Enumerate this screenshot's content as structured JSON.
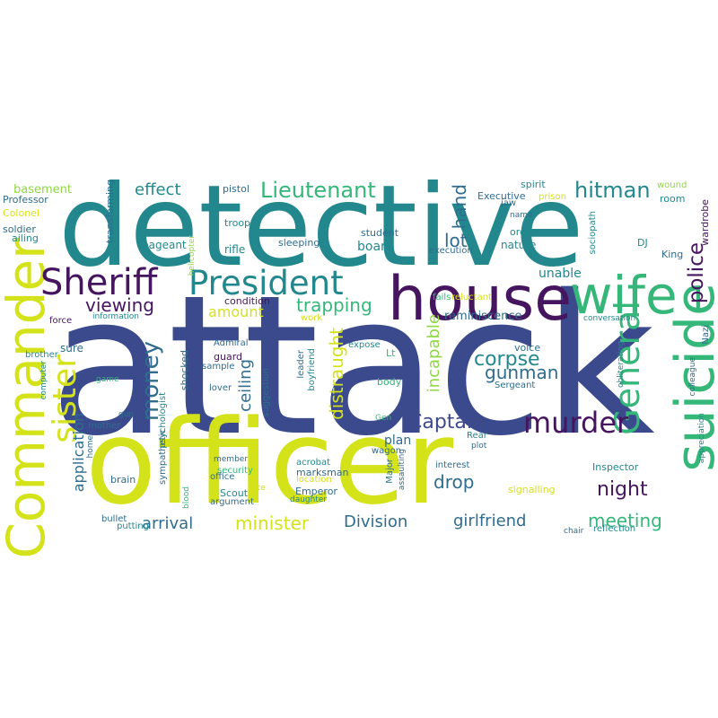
{
  "palette": {
    "navy": "#3b4a8c",
    "purple": "#46155f",
    "teal": "#23888e",
    "blue": "#2f6c8e",
    "green": "#35b779",
    "yellow": "#d4e21a",
    "lime": "#8fd744",
    "slate": "#3e4a89"
  },
  "words": [
    {
      "id": "attack",
      "text": "attack",
      "color": "navy"
    },
    {
      "id": "officer",
      "text": "officer",
      "color": "yellow"
    },
    {
      "id": "detective",
      "text": "detective",
      "color": "teal"
    },
    {
      "id": "commander",
      "text": "Commander",
      "color": "yellow"
    },
    {
      "id": "suicide",
      "text": "suicide",
      "color": "green"
    },
    {
      "id": "house",
      "text": "house",
      "color": "purple"
    },
    {
      "id": "wife",
      "text": "wife",
      "color": "green"
    },
    {
      "id": "sheriff",
      "text": "Sheriff",
      "color": "purple"
    },
    {
      "id": "president",
      "text": "President",
      "color": "teal"
    },
    {
      "id": "sister",
      "text": "sister",
      "color": "yellow"
    },
    {
      "id": "general",
      "text": "General",
      "color": "green"
    },
    {
      "id": "murder",
      "text": "murder",
      "color": "purple"
    },
    {
      "id": "money",
      "text": "money",
      "color": "blue"
    },
    {
      "id": "police",
      "text": "police",
      "color": "purple"
    },
    {
      "id": "hitman",
      "text": "hitman",
      "color": "teal"
    },
    {
      "id": "lieutenant",
      "text": "Lieutenant",
      "color": "green"
    },
    {
      "id": "captain",
      "text": "Captain",
      "color": "slate"
    },
    {
      "id": "corpse",
      "text": "corpse",
      "color": "teal"
    },
    {
      "id": "gunman",
      "text": "gunman",
      "color": "blue"
    },
    {
      "id": "night",
      "text": "night",
      "color": "purple"
    },
    {
      "id": "meeting",
      "text": "meeting",
      "color": "green"
    },
    {
      "id": "drop",
      "text": "drop",
      "color": "blue"
    },
    {
      "id": "minister",
      "text": "minister",
      "color": "yellow"
    },
    {
      "id": "division",
      "text": "Division",
      "color": "blue"
    },
    {
      "id": "girlfriend",
      "text": "girlfriend",
      "color": "blue"
    },
    {
      "id": "arrival",
      "text": "arrival",
      "color": "blue"
    },
    {
      "id": "viewing",
      "text": "viewing",
      "color": "purple"
    },
    {
      "id": "trapping",
      "text": "trapping",
      "color": "green"
    },
    {
      "id": "ceiling",
      "text": "ceiling",
      "color": "blue"
    },
    {
      "id": "distraught",
      "text": "distraught",
      "color": "yellow"
    },
    {
      "id": "incapable",
      "text": "incapable",
      "color": "lime"
    },
    {
      "id": "lot",
      "text": "lot",
      "color": "blue"
    },
    {
      "id": "hand",
      "text": "hand",
      "color": "blue"
    },
    {
      "id": "effect",
      "text": "effect",
      "color": "teal"
    },
    {
      "id": "amount",
      "text": "amount",
      "color": "yellow"
    },
    {
      "id": "application",
      "text": "application",
      "color": "blue"
    },
    {
      "id": "reminiscence",
      "text": "reminiscence",
      "color": "blue"
    },
    {
      "id": "board",
      "text": "board",
      "color": "teal"
    },
    {
      "id": "plan",
      "text": "plan",
      "color": "blue"
    },
    {
      "id": "unable",
      "text": "unable",
      "color": "teal"
    },
    {
      "id": "basement",
      "text": "basement",
      "color": "lime"
    },
    {
      "id": "professor",
      "text": "Professor",
      "color": "blue"
    },
    {
      "id": "colonel",
      "text": "Colonel",
      "color": "yellow"
    },
    {
      "id": "transforming",
      "text": "transforming",
      "color": "blue"
    },
    {
      "id": "pistol",
      "text": "pistol",
      "color": "blue"
    },
    {
      "id": "soldier",
      "text": "soldier",
      "color": "blue"
    },
    {
      "id": "ailing",
      "text": "ailing",
      "color": "teal"
    },
    {
      "id": "pageant",
      "text": "pageant",
      "color": "teal"
    },
    {
      "id": "helicopter",
      "text": "helicopter",
      "color": "lime"
    },
    {
      "id": "troop",
      "text": "troop",
      "color": "teal"
    },
    {
      "id": "rifle",
      "text": "rifle",
      "color": "teal"
    },
    {
      "id": "sleeping",
      "text": "sleeping",
      "color": "blue"
    },
    {
      "id": "student",
      "text": "student",
      "color": "blue"
    },
    {
      "id": "execution",
      "text": "execution",
      "color": "blue"
    },
    {
      "id": "executive",
      "text": "Executive",
      "color": "blue"
    },
    {
      "id": "jaw",
      "text": "jaw",
      "color": "blue"
    },
    {
      "id": "spirit",
      "text": "spirit",
      "color": "teal"
    },
    {
      "id": "prison",
      "text": "prison",
      "color": "yellow"
    },
    {
      "id": "wound",
      "text": "wound",
      "color": "lime"
    },
    {
      "id": "room",
      "text": "room",
      "color": "teal"
    },
    {
      "id": "name",
      "text": "name",
      "color": "blue"
    },
    {
      "id": "order",
      "text": "order",
      "color": "teal"
    },
    {
      "id": "nature",
      "text": "nature",
      "color": "teal"
    },
    {
      "id": "sociopath",
      "text": "sociopath",
      "color": "teal"
    },
    {
      "id": "dj",
      "text": "DJ",
      "color": "teal"
    },
    {
      "id": "wardrobe",
      "text": "wardrobe",
      "color": "purple"
    },
    {
      "id": "king",
      "text": "King",
      "color": "blue"
    },
    {
      "id": "condition",
      "text": "condition",
      "color": "purple"
    },
    {
      "id": "force",
      "text": "force",
      "color": "purple"
    },
    {
      "id": "information",
      "text": "information",
      "color": "teal"
    },
    {
      "id": "work",
      "text": "work",
      "color": "yellow"
    },
    {
      "id": "fails",
      "text": "fails",
      "color": "green"
    },
    {
      "id": "reluctant",
      "text": "reluctant",
      "color": "yellow"
    },
    {
      "id": "conversation",
      "text": "conversation",
      "color": "teal"
    },
    {
      "id": "nazi",
      "text": "Nazi",
      "color": "blue"
    },
    {
      "id": "sure",
      "text": "sure",
      "color": "blue"
    },
    {
      "id": "brother",
      "text": "brother",
      "color": "teal"
    },
    {
      "id": "admiral",
      "text": "Admiral",
      "color": "blue"
    },
    {
      "id": "guard",
      "text": "guard",
      "color": "purple"
    },
    {
      "id": "sample",
      "text": "sample",
      "color": "blue"
    },
    {
      "id": "shocked",
      "text": "shocked",
      "color": "blue"
    },
    {
      "id": "leader",
      "text": "leader",
      "color": "blue"
    },
    {
      "id": "boyfriend",
      "text": "boyfriend",
      "color": "teal"
    },
    {
      "id": "expose",
      "text": "expose",
      "color": "teal"
    },
    {
      "id": "lt",
      "text": "Lt",
      "color": "green"
    },
    {
      "id": "voice",
      "text": "voice",
      "color": "blue"
    },
    {
      "id": "body",
      "text": "body",
      "color": "green"
    },
    {
      "id": "sergeant",
      "text": "Sergeant",
      "color": "blue"
    },
    {
      "id": "obliterating",
      "text": "obliterating",
      "color": "teal"
    },
    {
      "id": "colleague",
      "text": "colleague",
      "color": "blue"
    },
    {
      "id": "computer",
      "text": "computer",
      "color": "teal"
    },
    {
      "id": "game",
      "text": "game",
      "color": "green"
    },
    {
      "id": "lover",
      "text": "lover",
      "color": "blue"
    },
    {
      "id": "suggestion",
      "text": "suggestion",
      "color": "blue"
    },
    {
      "id": "gen",
      "text": "Gen",
      "color": "green"
    },
    {
      "id": "gun",
      "text": "gun",
      "color": "blue"
    },
    {
      "id": "mother",
      "text": "mother",
      "color": "blue"
    },
    {
      "id": "psychologist",
      "text": "psychologist",
      "color": "teal"
    },
    {
      "id": "home",
      "text": "home",
      "color": "blue"
    },
    {
      "id": "sympathetic",
      "text": "sympathetic",
      "color": "blue"
    },
    {
      "id": "rear",
      "text": "Rear",
      "color": "teal"
    },
    {
      "id": "plot",
      "text": "plot",
      "color": "blue"
    },
    {
      "id": "wagon",
      "text": "wagon",
      "color": "blue"
    },
    {
      "id": "interest",
      "text": "interest",
      "color": "blue"
    },
    {
      "id": "inspector",
      "text": "Inspector",
      "color": "teal"
    },
    {
      "id": "member",
      "text": "member",
      "color": "blue"
    },
    {
      "id": "security",
      "text": "security",
      "color": "green"
    },
    {
      "id": "office",
      "text": "office",
      "color": "blue"
    },
    {
      "id": "acrobat",
      "text": "acrobat",
      "color": "teal"
    },
    {
      "id": "marksman",
      "text": "marksman",
      "color": "blue"
    },
    {
      "id": "location",
      "text": "location",
      "color": "yellow"
    },
    {
      "id": "brain",
      "text": "brain",
      "color": "blue"
    },
    {
      "id": "assaulting",
      "text": "assaulting",
      "color": "blue"
    },
    {
      "id": "major",
      "text": "Major",
      "color": "blue"
    },
    {
      "id": "appreciation",
      "text": "appreciation",
      "color": "teal"
    },
    {
      "id": "scout",
      "text": "Scout",
      "color": "teal"
    },
    {
      "id": "fate",
      "text": "fate",
      "color": "yellow"
    },
    {
      "id": "emperor",
      "text": "Emperor",
      "color": "blue"
    },
    {
      "id": "argument",
      "text": "argument",
      "color": "blue"
    },
    {
      "id": "daughter",
      "text": "daughter",
      "color": "teal"
    },
    {
      "id": "signalling",
      "text": "signalling",
      "color": "yellow"
    },
    {
      "id": "blood",
      "text": "blood",
      "color": "green"
    },
    {
      "id": "bullet",
      "text": "bullet",
      "color": "blue"
    },
    {
      "id": "putting",
      "text": "putting",
      "color": "teal"
    },
    {
      "id": "chair",
      "text": "chair",
      "color": "blue"
    },
    {
      "id": "reflection",
      "text": "reflection",
      "color": "teal"
    }
  ]
}
